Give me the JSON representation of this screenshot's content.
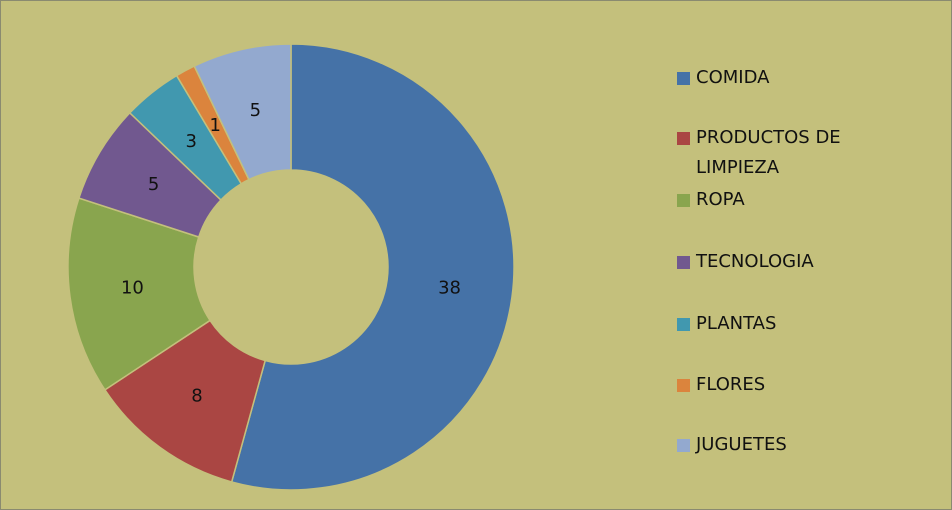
{
  "chart_data": {
    "type": "donut",
    "categories": [
      "COMIDA",
      "PRODUCTOS DE LIMPIEZA",
      "ROPA",
      "TECNOLOGIA",
      "PLANTAS",
      "FLORES",
      "JUGUETES"
    ],
    "values": [
      38,
      8,
      10,
      5,
      3,
      1,
      5
    ],
    "colors": [
      "#4572a7",
      "#aa4643",
      "#89a54e",
      "#71588f",
      "#4198af",
      "#db843d",
      "#93a9cf"
    ],
    "legend": "right"
  }
}
